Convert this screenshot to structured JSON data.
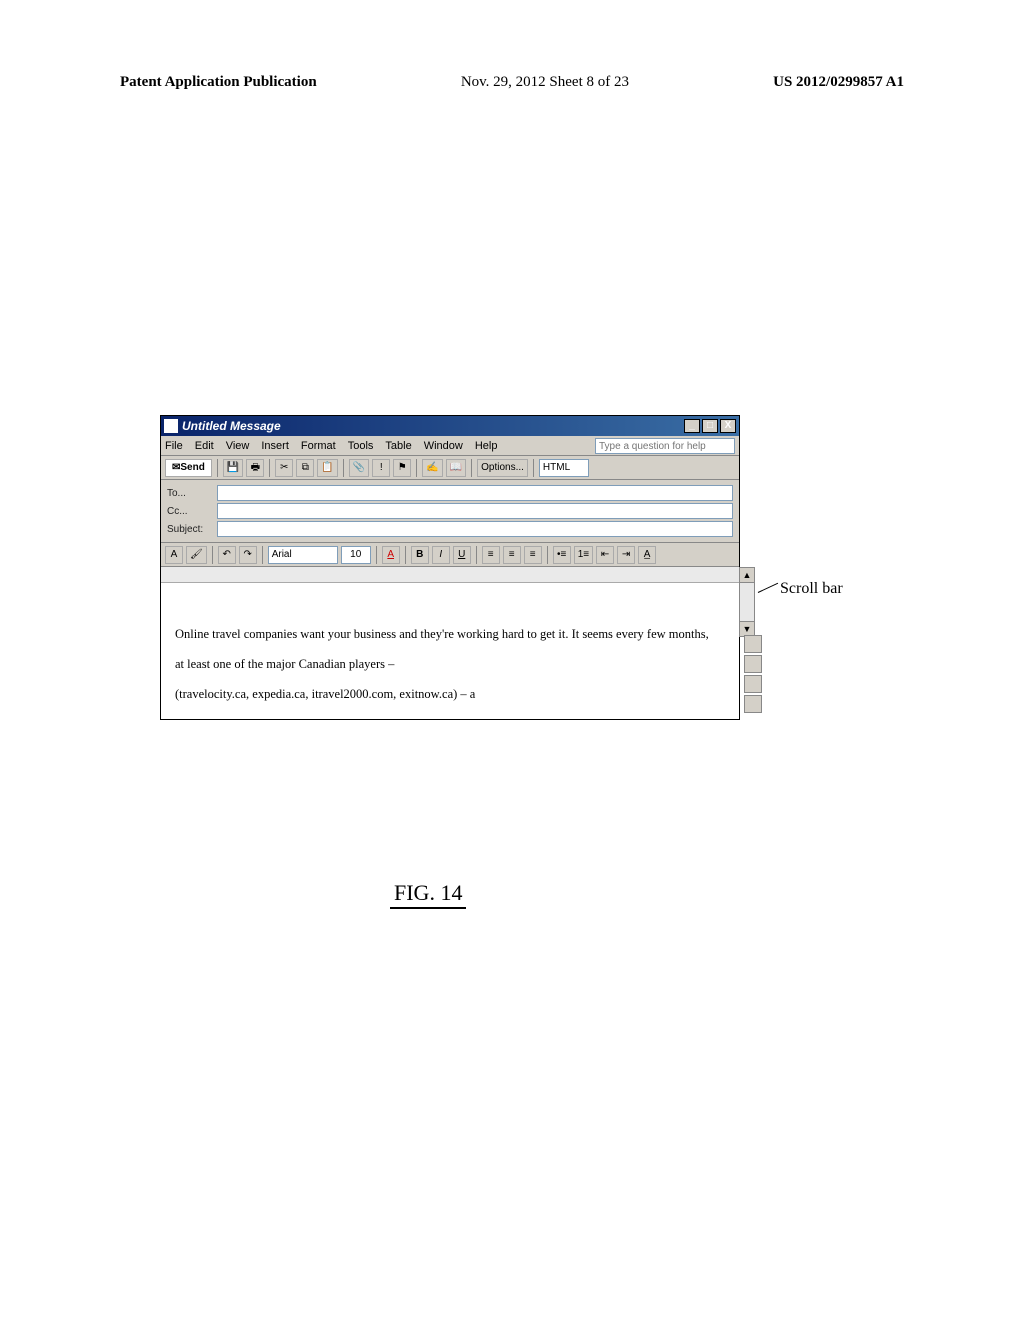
{
  "page_header": {
    "left": "Patent Application Publication",
    "center": "Nov. 29, 2012  Sheet 8 of 23",
    "right": "US 2012/0299857 A1"
  },
  "window": {
    "title": "Untitled Message",
    "win_buttons": {
      "min": "_",
      "max": "□",
      "close": "X"
    },
    "menubar": {
      "items": [
        "File",
        "Edit",
        "View",
        "Insert",
        "Format",
        "Tools",
        "Table",
        "Window",
        "Help"
      ],
      "help_placeholder": "Type a question for help"
    },
    "toolbar1": {
      "send_label": "Send",
      "format_dropdown": "HTML",
      "options_label": "Options..."
    },
    "header_fields": {
      "to_label": "To...",
      "cc_label": "Cc...",
      "subject_label": "Subject:"
    },
    "format_toolbar": {
      "font": "Arial",
      "size": "10"
    },
    "body_paragraphs": [
      "Online travel companies want your business and they're working hard to get it. It seems every few months,",
      "at least one of the major Canadian players –",
      "(travelocity.ca, expedia.ca, itravel2000.com, exitnow.ca) – a"
    ]
  },
  "annotations": {
    "scrollbar_label": "Scroll bar",
    "figure_label": "FIG. 14"
  },
  "colors": {
    "titlebar_start": "#0a246a",
    "titlebar_end": "#3a6ea5",
    "chrome": "#d4d0c8",
    "field_border": "#7f9db9",
    "page_bg": "#ffffff"
  }
}
